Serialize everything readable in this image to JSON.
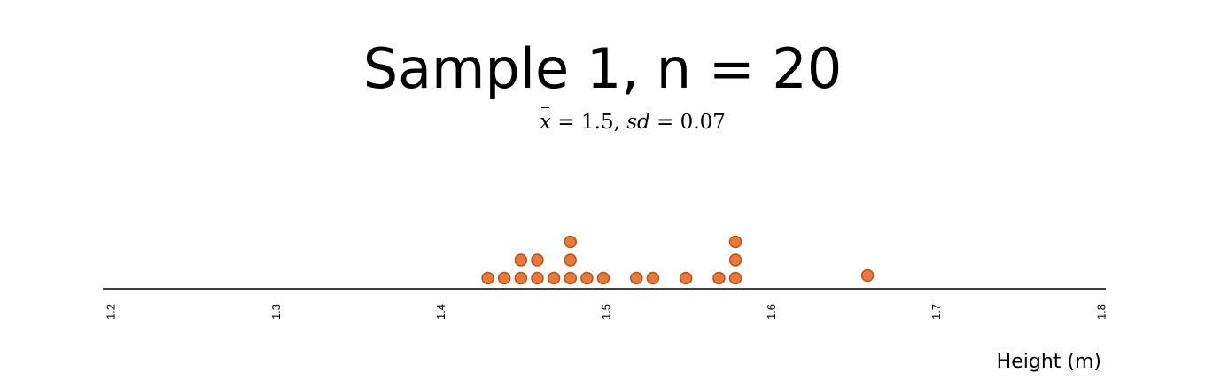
{
  "chart_data": {
    "type": "scatter",
    "subtype": "dot-plot",
    "title": "Sample 1, n = 20",
    "subtitle": {
      "xbar_symbol": "x",
      "mean_text": " = 1.5, ",
      "sd_symbol": "sd",
      "sd_text": " = 0.07"
    },
    "xlabel": "Height (m)",
    "ylabel": "",
    "xlim": [
      1.2,
      1.8
    ],
    "x_ticks": [
      "1.2",
      "1.3",
      "1.4",
      "1.5",
      "1.6",
      "1.7",
      "1.8"
    ],
    "grid": false,
    "points": [
      1.43,
      1.44,
      1.45,
      1.45,
      1.46,
      1.46,
      1.47,
      1.48,
      1.48,
      1.48,
      1.49,
      1.5,
      1.52,
      1.53,
      1.55,
      1.57,
      1.58,
      1.58,
      1.58,
      1.66
    ],
    "colors": {
      "dot_fill": "#e8793b",
      "dot_stroke": "#b5541c",
      "axis": "#000000"
    }
  }
}
